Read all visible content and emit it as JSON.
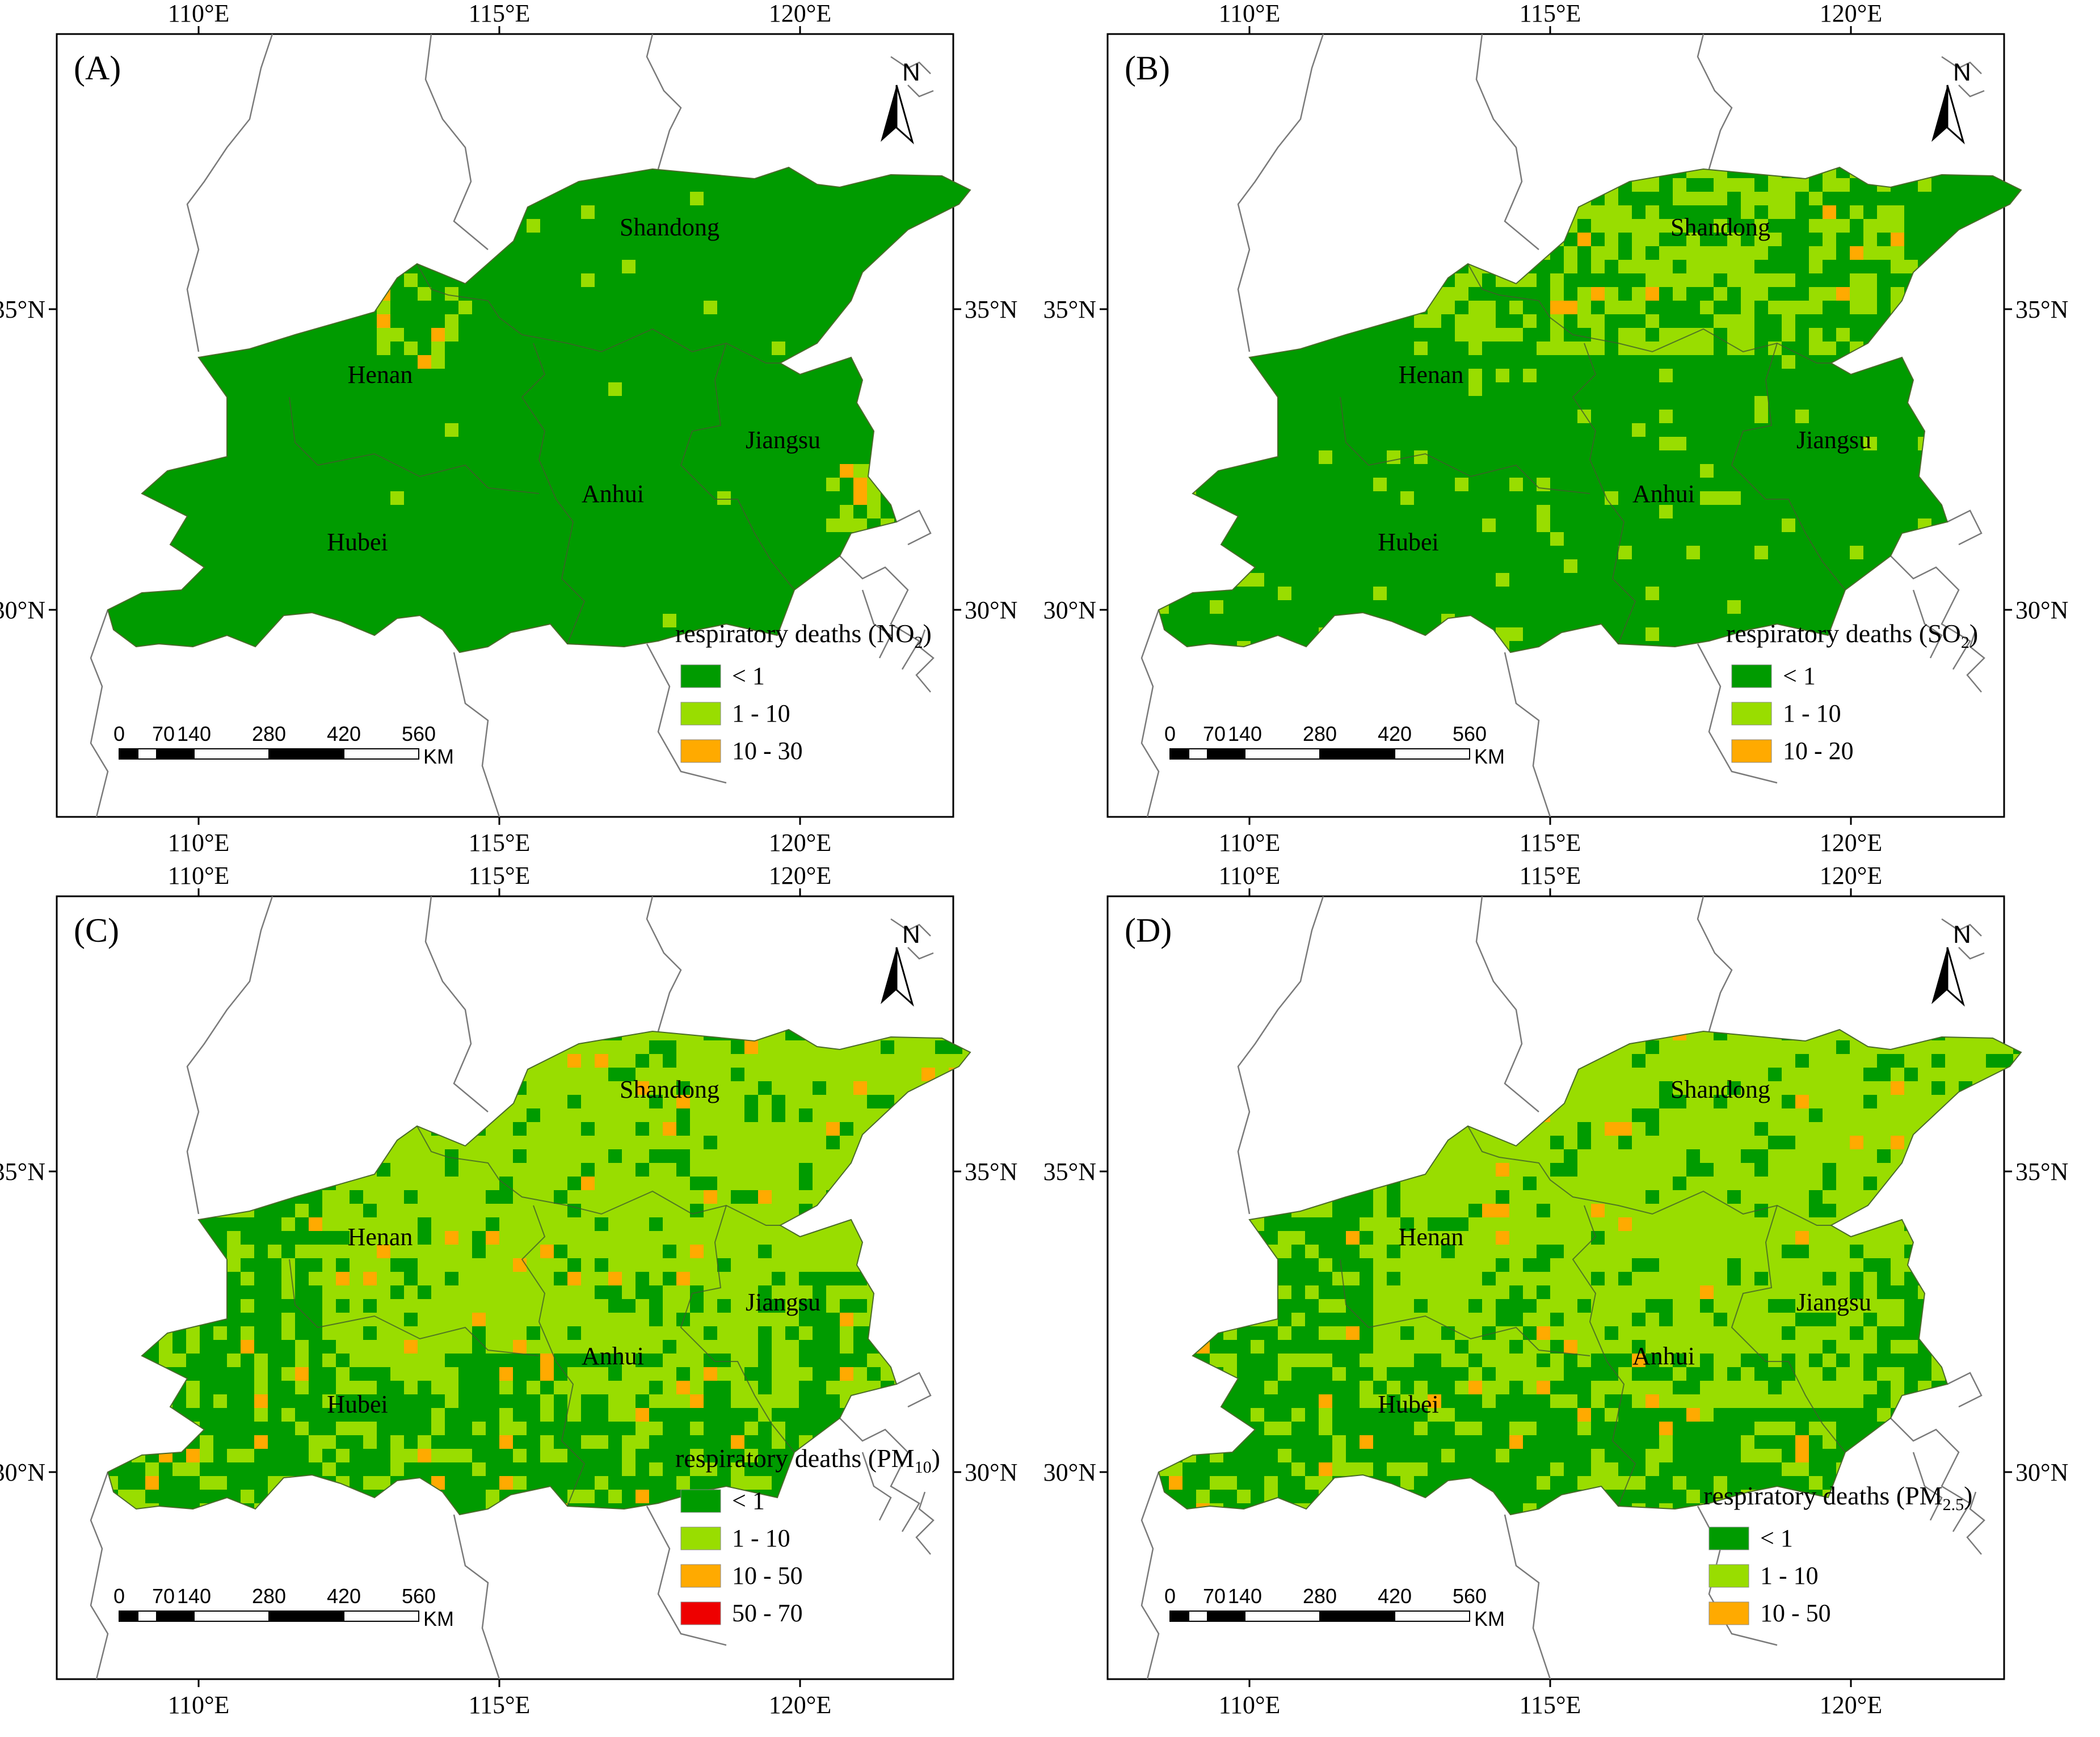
{
  "panels": [
    {
      "id": "A",
      "label": "(A)",
      "legend_title": "respiratory deaths (NO",
      "legend_sub": "2",
      "legend_close": ")",
      "classes": [
        {
          "label": "< 1",
          "color": "#009b00"
        },
        {
          "label": "1 - 10",
          "color": "#99dd00"
        },
        {
          "label": "10 - 30",
          "color": "#ffaa00"
        }
      ]
    },
    {
      "id": "B",
      "label": "(B)",
      "legend_title": "respiratory deaths (SO",
      "legend_sub": "2",
      "legend_close": ")",
      "classes": [
        {
          "label": "< 1",
          "color": "#009b00"
        },
        {
          "label": "1 - 10",
          "color": "#99dd00"
        },
        {
          "label": "10 - 20",
          "color": "#ffaa00"
        }
      ]
    },
    {
      "id": "C",
      "label": "(C)",
      "legend_title": "respiratory deaths (PM",
      "legend_sub": "10",
      "legend_close": ")",
      "classes": [
        {
          "label": "< 1",
          "color": "#009b00"
        },
        {
          "label": "1 - 10",
          "color": "#99dd00"
        },
        {
          "label": "10 - 50",
          "color": "#ffaa00"
        },
        {
          "label": "50 - 70",
          "color": "#ee0000"
        }
      ]
    },
    {
      "id": "D",
      "label": "(D)",
      "legend_title": "respiratory deaths (PM",
      "legend_sub": "2.5",
      "legend_close": ")",
      "classes": [
        {
          "label": "< 1",
          "color": "#009b00"
        },
        {
          "label": "1 - 10",
          "color": "#99dd00"
        },
        {
          "label": "10 - 50",
          "color": "#ffaa00"
        }
      ]
    }
  ],
  "provinces": [
    "Shandong",
    "Henan",
    "Jiangsu",
    "Anhui",
    "Hubei"
  ],
  "lon_labels": [
    "110°E",
    "115°E",
    "120°E"
  ],
  "lat_labels": [
    "35°N",
    "30°N"
  ],
  "north_label": "N",
  "scale_ticks": [
    "0",
    "70",
    "140",
    "280",
    "420",
    "560"
  ],
  "scale_unit": "KM"
}
